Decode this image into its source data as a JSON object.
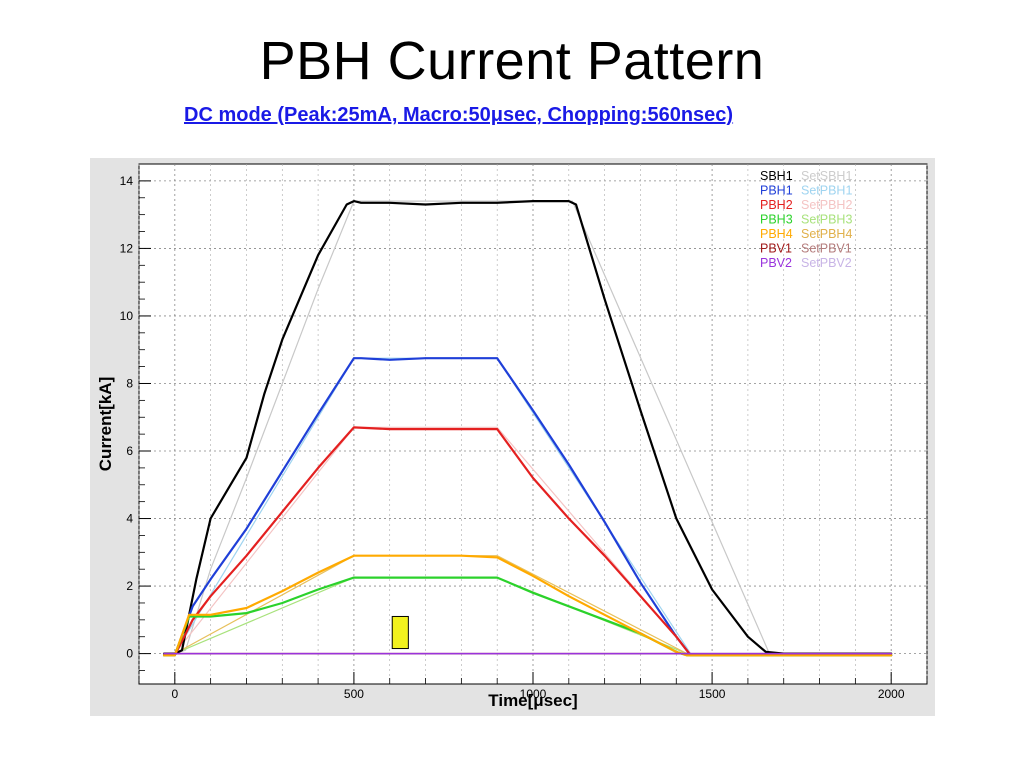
{
  "title": "PBH Current Pattern",
  "subtitle": "DC mode (Peak:25mA, Macro:50μsec, Chopping:560nsec)",
  "chart_data": {
    "type": "line",
    "xlabel": "Time[μsec]",
    "ylabel": "Current[kA]",
    "xlim": [
      -100,
      2100
    ],
    "ylim": [
      -0.9,
      14.5
    ],
    "xticks": [
      0,
      500,
      1000,
      1500,
      2000
    ],
    "yticks": [
      0,
      2,
      4,
      6,
      8,
      10,
      12,
      14
    ],
    "grid": true,
    "legend_position": "top-right",
    "series": [
      {
        "name": "SBH1",
        "color": "#000000",
        "width": 2.2,
        "x": [
          -30,
          0,
          20,
          60,
          100,
          150,
          200,
          250,
          300,
          400,
          480,
          500,
          520,
          600,
          700,
          800,
          900,
          1000,
          1100,
          1120,
          1200,
          1300,
          1400,
          1500,
          1600,
          1650,
          1700,
          2000
        ],
        "y": [
          0,
          0,
          0.1,
          2.2,
          4.0,
          4.9,
          5.8,
          7.7,
          9.3,
          11.8,
          13.3,
          13.4,
          13.35,
          13.35,
          13.3,
          13.35,
          13.35,
          13.4,
          13.4,
          13.3,
          10.5,
          7.2,
          4.0,
          1.9,
          0.5,
          0.05,
          0,
          0
        ]
      },
      {
        "name": "SetSBH1",
        "color": "#c8c8c8",
        "width": 1.2,
        "x": [
          0,
          30,
          100,
          200,
          300,
          400,
          500,
          1110,
          1660,
          2000
        ],
        "y": [
          0,
          0.1,
          2.5,
          5.2,
          8.0,
          10.8,
          13.4,
          13.4,
          0,
          0
        ]
      },
      {
        "name": "PBH1",
        "color": "#1f3fd8",
        "width": 2.2,
        "x": [
          -30,
          0,
          50,
          100,
          200,
          300,
          400,
          500,
          520,
          600,
          700,
          800,
          900,
          1000,
          1100,
          1200,
          1300,
          1400,
          1440,
          2000
        ],
        "y": [
          -0.05,
          -0.05,
          1.4,
          2.2,
          3.7,
          5.4,
          7.1,
          8.75,
          8.75,
          8.7,
          8.75,
          8.75,
          8.75,
          7.2,
          5.6,
          3.9,
          2.1,
          0.5,
          -0.05,
          -0.05
        ]
      },
      {
        "name": "SetPBH1",
        "color": "#9fd4f0",
        "width": 1.2,
        "x": [
          0,
          500,
          900,
          1440,
          2000
        ],
        "y": [
          0,
          8.75,
          8.75,
          0,
          0
        ]
      },
      {
        "name": "PBH2",
        "color": "#e42020",
        "width": 2.2,
        "x": [
          -30,
          0,
          50,
          100,
          200,
          300,
          400,
          500,
          600,
          700,
          800,
          900,
          1000,
          1100,
          1200,
          1300,
          1400,
          1440,
          2000
        ],
        "y": [
          -0.05,
          -0.05,
          1.0,
          1.7,
          2.9,
          4.2,
          5.5,
          6.7,
          6.65,
          6.65,
          6.65,
          6.65,
          5.2,
          4.0,
          2.9,
          1.7,
          0.5,
          -0.05,
          -0.05
        ]
      },
      {
        "name": "SetPBH2",
        "color": "#f4c4c4",
        "width": 1.2,
        "x": [
          0,
          500,
          900,
          1440,
          2000
        ],
        "y": [
          0,
          6.7,
          6.7,
          0,
          0
        ]
      },
      {
        "name": "PBH3",
        "color": "#2bd22b",
        "width": 2.2,
        "x": [
          -30,
          0,
          40,
          100,
          200,
          300,
          400,
          500,
          600,
          700,
          800,
          900,
          1000,
          1100,
          1200,
          1300,
          1400,
          1430,
          2000
        ],
        "y": [
          -0.05,
          -0.05,
          1.1,
          1.1,
          1.2,
          1.5,
          1.9,
          2.25,
          2.25,
          2.25,
          2.25,
          2.25,
          1.8,
          1.4,
          1.0,
          0.6,
          0.05,
          -0.05,
          -0.05
        ]
      },
      {
        "name": "SetPBH3",
        "color": "#a8e27c",
        "width": 1.2,
        "x": [
          0,
          500,
          900,
          1430,
          2000
        ],
        "y": [
          0,
          2.25,
          2.25,
          0,
          0
        ]
      },
      {
        "name": "PBH4",
        "color": "#ffaa00",
        "width": 2.2,
        "x": [
          -30,
          0,
          40,
          100,
          200,
          300,
          400,
          500,
          600,
          700,
          800,
          900,
          1000,
          1100,
          1200,
          1300,
          1400,
          1430,
          2000
        ],
        "y": [
          -0.05,
          -0.05,
          1.15,
          1.15,
          1.35,
          1.85,
          2.4,
          2.9,
          2.9,
          2.9,
          2.9,
          2.85,
          2.3,
          1.7,
          1.15,
          0.6,
          0.05,
          -0.05,
          -0.05
        ]
      },
      {
        "name": "SetPBH4",
        "color": "#e7c05c",
        "width": 1.2,
        "x": [
          0,
          500,
          900,
          1430,
          2000
        ],
        "y": [
          0,
          2.9,
          2.9,
          0,
          0
        ]
      },
      {
        "name": "PBV1",
        "color": "#a01a1a",
        "width": 1.5,
        "x": [
          -30,
          2000
        ],
        "y": [
          0,
          0
        ]
      },
      {
        "name": "SetPBV1",
        "color": "#b47c7c",
        "width": 1.0,
        "x": [
          -30,
          2000
        ],
        "y": [
          0,
          0
        ]
      },
      {
        "name": "PBV2",
        "color": "#9933dd",
        "width": 1.5,
        "x": [
          -30,
          2000
        ],
        "y": [
          0,
          0
        ]
      },
      {
        "name": "SetPBV2",
        "color": "#c8b4e6",
        "width": 1.0,
        "x": [
          -30,
          2000
        ],
        "y": [
          0,
          0
        ]
      }
    ],
    "legend": [
      {
        "label": "SBH1",
        "color": "#000000",
        "set_label": "SetSBH1",
        "set_color": "#cccccc"
      },
      {
        "label": "PBH1",
        "color": "#1f3fd8",
        "set_label": "SetPBH1",
        "set_color": "#9fd4f0"
      },
      {
        "label": "PBH2",
        "color": "#e42020",
        "set_label": "SetPBH2",
        "set_color": "#f4c4c4"
      },
      {
        "label": "PBH3",
        "color": "#2bd22b",
        "set_label": "SetPBH3",
        "set_color": "#a8e27c"
      },
      {
        "label": "PBH4",
        "color": "#ffaa00",
        "set_label": "SetPBH4",
        "set_color": "#e0b04a"
      },
      {
        "label": "PBV1",
        "color": "#a01a1a",
        "set_label": "SetPBV1",
        "set_color": "#b47c7c"
      },
      {
        "label": "PBV2",
        "color": "#9933dd",
        "set_label": "SetPBV2",
        "set_color": "#c8b4e6"
      }
    ],
    "marker_box": {
      "x": [
        607,
        652
      ],
      "y": [
        0.15,
        1.1
      ],
      "color": "#f2f21e"
    }
  }
}
